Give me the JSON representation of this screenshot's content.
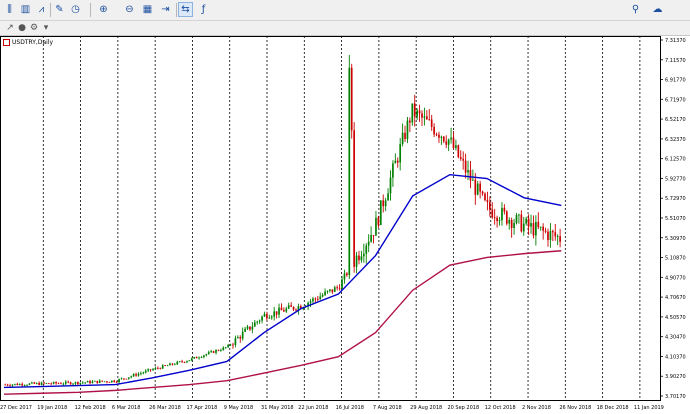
{
  "toolbar": {
    "buttons": [
      {
        "name": "bar-chart-icon",
        "glyph": "⫼"
      },
      {
        "name": "candlestick-icon",
        "glyph": "▥"
      },
      {
        "name": "line-chart-icon",
        "glyph": "⩘"
      },
      {
        "name": "template-icon",
        "glyph": "✎"
      },
      {
        "name": "periodicity-icon",
        "glyph": "◷"
      },
      {
        "name": "zoom-in-icon",
        "glyph": "⊕"
      },
      {
        "name": "zoom-out-icon",
        "glyph": "⊖"
      },
      {
        "name": "tile-windows-icon",
        "glyph": "▦"
      },
      {
        "name": "autoscroll-icon",
        "glyph": "⇥"
      },
      {
        "name": "chart-shift-icon",
        "glyph": "⇆"
      },
      {
        "name": "indicators-icon",
        "glyph": "ƒ"
      }
    ],
    "right_icons": [
      {
        "name": "search-icon",
        "glyph": "⚲"
      },
      {
        "name": "chat-icon",
        "glyph": "☁"
      }
    ]
  },
  "toolbar2": {
    "buttons": [
      {
        "name": "crosshair-tool-icon",
        "glyph": "↗"
      },
      {
        "name": "object-icon",
        "glyph": "●"
      },
      {
        "name": "settings-icon",
        "glyph": "⚙"
      },
      {
        "name": "dropdown-icon",
        "glyph": "▾"
      }
    ]
  },
  "chart": {
    "symbol_title": "USDTRY,Daily",
    "price_labels": [
      "7.31370",
      "7.11570",
      "6.91770",
      "6.71970",
      "6.52170",
      "6.32370",
      "6.12570",
      "5.92770",
      "5.72970",
      "5.51070",
      "5.30970",
      "5.10870",
      "4.90770",
      "4.70670",
      "4.50570",
      "4.30470",
      "4.10370",
      "3.90270",
      "3.70170"
    ],
    "date_labels": [
      "27 Dec 2017",
      "19 Jan 2018",
      "12 Feb 2018",
      "6 Mar 2018",
      "26 Mar 2018",
      "17 Apr 2018",
      "9 May 2018",
      "31 May 2018",
      "22 Jun 2018",
      "16 Jul 2018",
      "7 Aug 2018",
      "29 Aug 2018",
      "20 Sep 2018",
      "12 Oct 2018",
      "2 Nov 2018",
      "26 Nov 2018",
      "18 Dec 2018",
      "11 Jan 2019"
    ],
    "colors": {
      "bull": "#008000",
      "bear": "#cc0000",
      "ma_fast": "#0000cc",
      "ma_slow": "#b0104a",
      "grid": "#000000"
    }
  },
  "chart_data": {
    "type": "candlestick",
    "title": "USDTRY,Daily",
    "x": [
      "27 Dec 2017",
      "19 Jan 2018",
      "12 Feb 2018",
      "6 Mar 2018",
      "26 Mar 2018",
      "17 Apr 2018",
      "9 May 2018",
      "31 May 2018",
      "22 Jun 2018",
      "16 Jul 2018",
      "7 Aug 2018",
      "29 Aug 2018",
      "20 Sep 2018",
      "12 Oct 2018",
      "2 Nov 2018",
      "26 Nov 2018"
    ],
    "close": [
      3.76,
      3.77,
      3.78,
      3.8,
      3.92,
      4.02,
      4.15,
      4.48,
      4.58,
      4.77,
      5.4,
      6.6,
      6.3,
      5.6,
      5.42,
      5.28
    ],
    "ylim": [
      3.6,
      7.38
    ],
    "series": [
      {
        "name": "MA fast",
        "values": [
          3.73,
          3.74,
          3.75,
          3.76,
          3.83,
          3.91,
          4.0,
          4.3,
          4.55,
          4.7,
          5.1,
          5.72,
          5.94,
          5.9,
          5.7,
          5.62
        ]
      },
      {
        "name": "MA slow",
        "values": [
          3.66,
          3.67,
          3.68,
          3.7,
          3.73,
          3.76,
          3.8,
          3.88,
          3.96,
          4.05,
          4.3,
          4.74,
          5.0,
          5.08,
          5.12,
          5.15
        ]
      }
    ],
    "grid": "vertical dashed only"
  }
}
